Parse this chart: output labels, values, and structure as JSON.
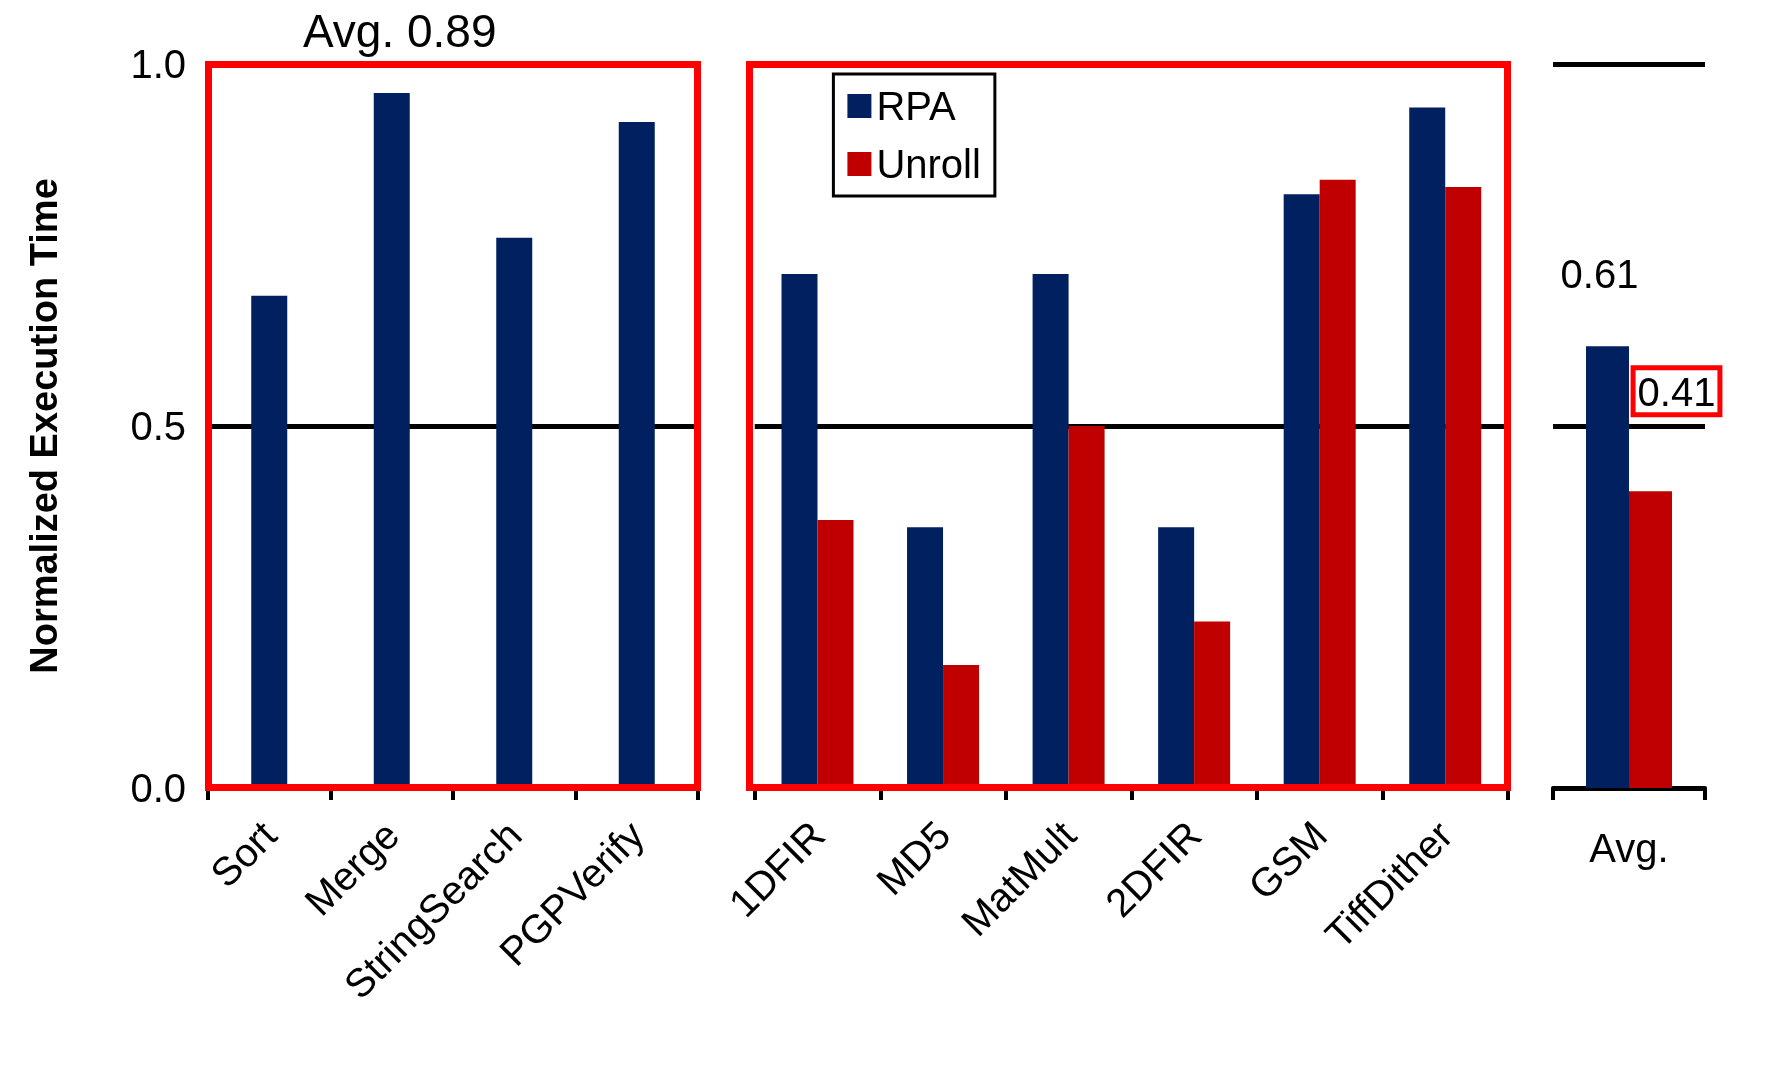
{
  "chart_data": [
    {
      "type": "bar",
      "ylabel": "Normalized Execution Time",
      "annotations": [
        "Avg. 0.89"
      ],
      "categories": [
        "Sort",
        "Merge",
        "StringSearch",
        "PGPVerify"
      ],
      "series": [
        {
          "color": "#002060",
          "values": [
            0.68,
            0.96,
            0.76,
            0.92
          ]
        }
      ],
      "ylim": [
        0,
        1
      ],
      "yticks": [
        {
          "value": 0,
          "label": "0.0"
        },
        0.5,
        {
          "value": 1,
          "label": "1.0"
        }
      ],
      "grid": "y",
      "legend": false
    },
    {
      "type": "bar",
      "categories": [
        "1DFIR",
        "MD5",
        "MatMult",
        "2DFIR",
        "GSM",
        "TiffDither"
      ],
      "series": [
        {
          "name": "RPA",
          "color": "#002060",
          "values": [
            0.71,
            0.36,
            0.71,
            0.36,
            0.82,
            0.94
          ]
        },
        {
          "name": "Unroll",
          "color": "#c00000",
          "values": [
            0.37,
            0.17,
            0.5,
            0.23,
            0.84,
            0.83
          ]
        }
      ],
      "ylim": [
        0,
        1
      ],
      "yticks": [
        0,
        0.5,
        1
      ],
      "grid": "y",
      "legend": "top left",
      "tick_labels": "x"
    },
    {
      "type": "bar",
      "categories": [
        "Avg."
      ],
      "series": [
        {
          "color": "#002060",
          "values": [
            0.61
          ]
        },
        {
          "color": "#c00000",
          "values": [
            0.41
          ]
        }
      ],
      "ylim": [
        0,
        1
      ],
      "yticks": [
        0,
        0.5,
        1
      ],
      "grid": "y",
      "legend": false,
      "tick_labels": "x",
      "data_labels": true
    }
  ]
}
